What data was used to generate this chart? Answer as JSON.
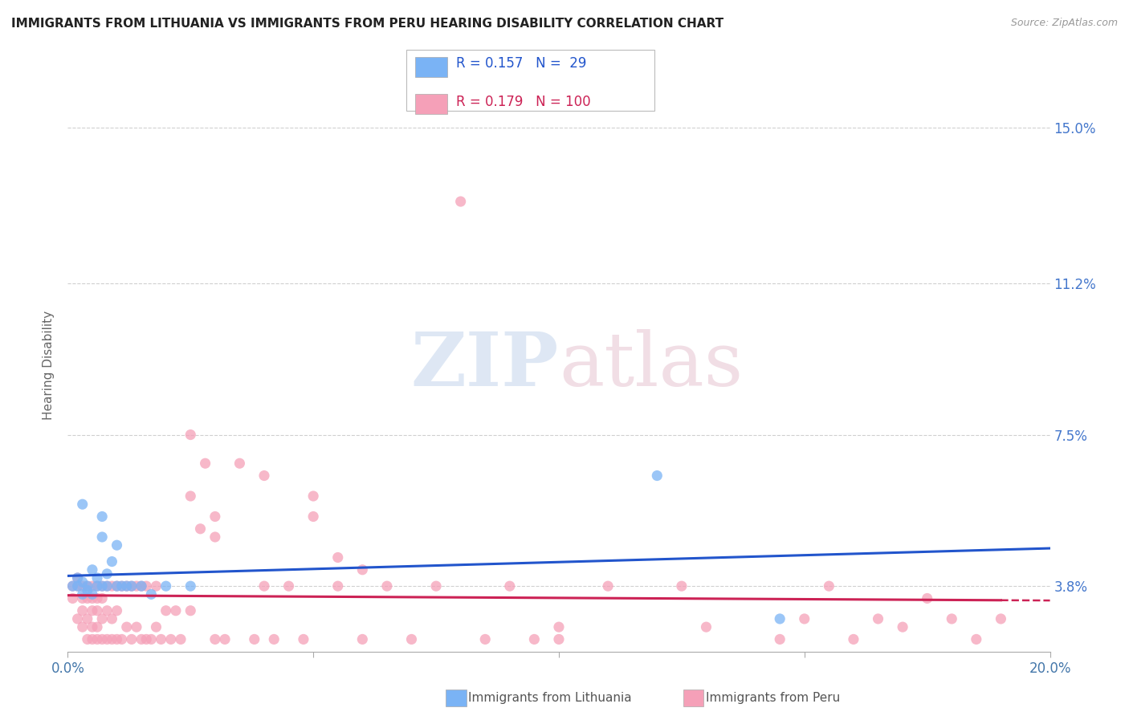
{
  "title": "IMMIGRANTS FROM LITHUANIA VS IMMIGRANTS FROM PERU HEARING DISABILITY CORRELATION CHART",
  "source": "Source: ZipAtlas.com",
  "ylabel": "Hearing Disability",
  "xmin": 0.0,
  "xmax": 0.2,
  "ymin": 0.022,
  "ymax": 0.162,
  "yticks": [
    0.038,
    0.075,
    0.112,
    0.15
  ],
  "ytick_labels": [
    "3.8%",
    "7.5%",
    "11.2%",
    "15.0%"
  ],
  "color_lithuania": "#7ab3f5",
  "color_peru": "#f5a0b8",
  "color_line_lithuania": "#2255cc",
  "color_line_peru": "#cc2255",
  "background_color": "#ffffff",
  "grid_color": "#d0d0d0",
  "legend_r_lithuania": "R = 0.157",
  "legend_n_lithuania": "N =  29",
  "legend_r_peru": "R = 0.179",
  "legend_n_peru": "N = 100",
  "legend_label_lithuania": "Immigrants from Lithuania",
  "legend_label_peru": "Immigrants from Peru",
  "lit_x": [
    0.001,
    0.002,
    0.002,
    0.003,
    0.003,
    0.004,
    0.004,
    0.005,
    0.005,
    0.006,
    0.006,
    0.007,
    0.007,
    0.008,
    0.008,
    0.009,
    0.01,
    0.01,
    0.011,
    0.012,
    0.013,
    0.015,
    0.017,
    0.02,
    0.025,
    0.003,
    0.007,
    0.12,
    0.145
  ],
  "lit_y": [
    0.038,
    0.038,
    0.04,
    0.036,
    0.039,
    0.038,
    0.037,
    0.042,
    0.036,
    0.038,
    0.04,
    0.038,
    0.05,
    0.038,
    0.041,
    0.044,
    0.038,
    0.048,
    0.038,
    0.038,
    0.038,
    0.038,
    0.036,
    0.038,
    0.038,
    0.058,
    0.055,
    0.065,
    0.03
  ],
  "peru_x": [
    0.001,
    0.001,
    0.002,
    0.002,
    0.002,
    0.003,
    0.003,
    0.003,
    0.003,
    0.004,
    0.004,
    0.004,
    0.004,
    0.005,
    0.005,
    0.005,
    0.005,
    0.005,
    0.006,
    0.006,
    0.006,
    0.006,
    0.006,
    0.007,
    0.007,
    0.007,
    0.007,
    0.008,
    0.008,
    0.008,
    0.009,
    0.009,
    0.009,
    0.01,
    0.01,
    0.01,
    0.011,
    0.011,
    0.012,
    0.012,
    0.013,
    0.013,
    0.014,
    0.014,
    0.015,
    0.015,
    0.016,
    0.016,
    0.017,
    0.018,
    0.018,
    0.019,
    0.02,
    0.021,
    0.022,
    0.023,
    0.025,
    0.025,
    0.027,
    0.028,
    0.03,
    0.03,
    0.032,
    0.035,
    0.038,
    0.04,
    0.042,
    0.045,
    0.048,
    0.05,
    0.055,
    0.06,
    0.065,
    0.07,
    0.075,
    0.08,
    0.085,
    0.09,
    0.1,
    0.11,
    0.025,
    0.03,
    0.04,
    0.05,
    0.055,
    0.06,
    0.15,
    0.155,
    0.16,
    0.165,
    0.17,
    0.175,
    0.18,
    0.185,
    0.19,
    0.13,
    0.125,
    0.145,
    0.1,
    0.095
  ],
  "peru_y": [
    0.038,
    0.035,
    0.03,
    0.038,
    0.04,
    0.028,
    0.032,
    0.035,
    0.038,
    0.025,
    0.03,
    0.035,
    0.038,
    0.025,
    0.028,
    0.032,
    0.035,
    0.038,
    0.025,
    0.028,
    0.032,
    0.035,
    0.038,
    0.025,
    0.03,
    0.035,
    0.038,
    0.025,
    0.032,
    0.038,
    0.025,
    0.03,
    0.038,
    0.025,
    0.032,
    0.038,
    0.025,
    0.038,
    0.028,
    0.038,
    0.025,
    0.038,
    0.028,
    0.038,
    0.025,
    0.038,
    0.025,
    0.038,
    0.025,
    0.028,
    0.038,
    0.025,
    0.032,
    0.025,
    0.032,
    0.025,
    0.032,
    0.06,
    0.052,
    0.068,
    0.025,
    0.055,
    0.025,
    0.068,
    0.025,
    0.038,
    0.025,
    0.038,
    0.025,
    0.06,
    0.038,
    0.025,
    0.038,
    0.025,
    0.038,
    0.132,
    0.025,
    0.038,
    0.025,
    0.038,
    0.075,
    0.05,
    0.065,
    0.055,
    0.045,
    0.042,
    0.03,
    0.038,
    0.025,
    0.03,
    0.028,
    0.035,
    0.03,
    0.025,
    0.03,
    0.028,
    0.038,
    0.025,
    0.028,
    0.025
  ]
}
